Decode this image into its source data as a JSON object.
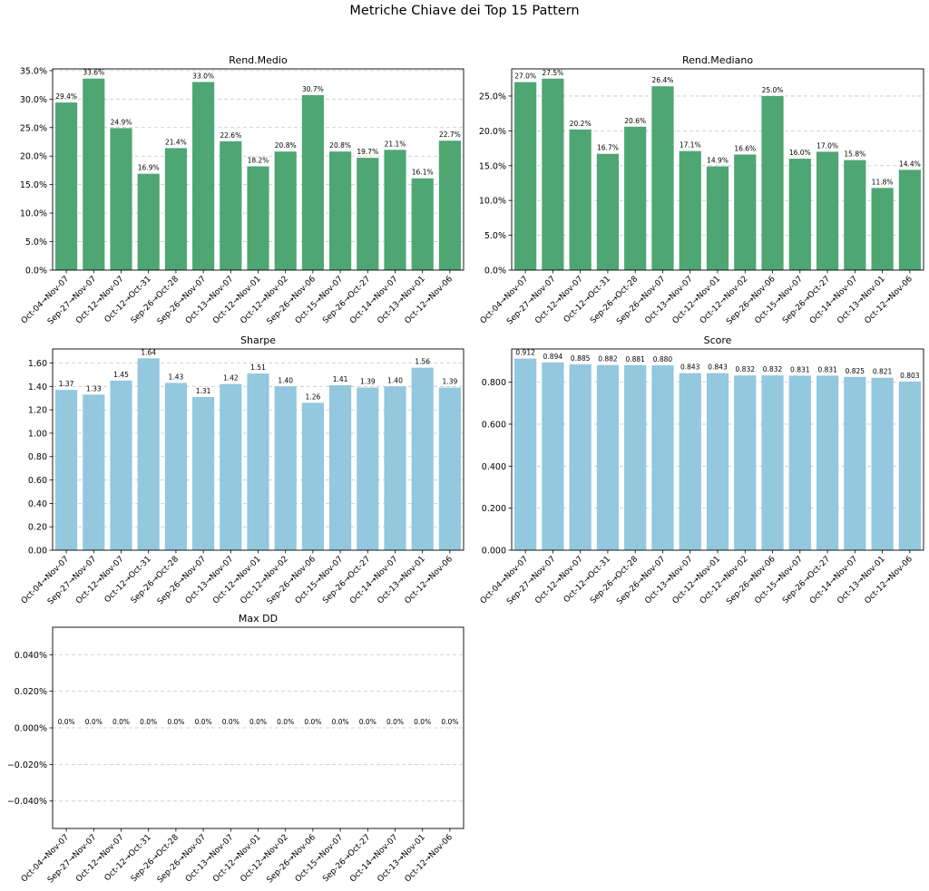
{
  "figure_title": "Metriche Chiave dei Top 15 Pattern",
  "colors": {
    "green": "#4ea673",
    "blue": "#93c8de"
  },
  "chart_data": [
    {
      "type": "bar",
      "title": "Rend.Medio",
      "categories": [
        "Oct-04→Nov-07",
        "Sep-27→Nov-07",
        "Oct-12→Nov-07",
        "Oct-12→Oct-31",
        "Sep-26→Oct-28",
        "Sep-26→Nov-07",
        "Oct-13→Nov-07",
        "Oct-12→Nov-01",
        "Oct-12→Nov-02",
        "Sep-26→Nov-06",
        "Oct-15→Nov-07",
        "Sep-26→Oct-27",
        "Oct-14→Nov-07",
        "Oct-13→Nov-01",
        "Oct-12→Nov-06"
      ],
      "values": [
        29.4,
        33.6,
        24.9,
        16.9,
        21.4,
        33.0,
        22.6,
        18.2,
        20.8,
        30.7,
        20.8,
        19.7,
        21.1,
        16.1,
        22.7
      ],
      "data_labels": [
        "29.4%",
        "33.6%",
        "24.9%",
        "16.9%",
        "21.4%",
        "33.0%",
        "22.6%",
        "18.2%",
        "20.8%",
        "30.7%",
        "20.8%",
        "19.7%",
        "21.1%",
        "16.1%",
        "22.7%"
      ],
      "yticks": [
        0,
        5,
        10,
        15,
        20,
        25,
        30,
        35
      ],
      "ytick_labels": [
        "0.0%",
        "5.0%",
        "10.0%",
        "15.0%",
        "20.0%",
        "25.0%",
        "30.0%",
        "35.0%"
      ],
      "ylim": [
        0,
        35.3
      ],
      "color": "green",
      "grid": "y-dashed"
    },
    {
      "type": "bar",
      "title": "Rend.Mediano",
      "categories": [
        "Oct-04→Nov-07",
        "Sep-27→Nov-07",
        "Oct-12→Nov-07",
        "Oct-12→Oct-31",
        "Sep-26→Oct-28",
        "Sep-26→Nov-07",
        "Oct-13→Nov-07",
        "Oct-12→Nov-01",
        "Oct-12→Nov-02",
        "Sep-26→Nov-06",
        "Oct-15→Nov-07",
        "Sep-26→Oct-27",
        "Oct-14→Nov-07",
        "Oct-13→Nov-01",
        "Oct-12→Nov-06"
      ],
      "values": [
        27.0,
        27.5,
        20.2,
        16.7,
        20.6,
        26.4,
        17.1,
        14.9,
        16.6,
        25.0,
        16.0,
        17.0,
        15.8,
        11.8,
        14.4
      ],
      "data_labels": [
        "27.0%",
        "27.5%",
        "20.2%",
        "16.7%",
        "20.6%",
        "26.4%",
        "17.1%",
        "14.9%",
        "16.6%",
        "25.0%",
        "16.0%",
        "17.0%",
        "15.8%",
        "11.8%",
        "14.4%"
      ],
      "yticks": [
        0,
        5,
        10,
        15,
        20,
        25
      ],
      "ytick_labels": [
        "0.0%",
        "5.0%",
        "10.0%",
        "15.0%",
        "20.0%",
        "25.0%"
      ],
      "ylim": [
        0,
        28.9
      ],
      "color": "green",
      "grid": "y-dashed"
    },
    {
      "type": "bar",
      "title": "Sharpe",
      "categories": [
        "Oct-04→Nov-07",
        "Sep-27→Nov-07",
        "Oct-12→Nov-07",
        "Oct-12→Oct-31",
        "Sep-26→Oct-28",
        "Sep-26→Nov-07",
        "Oct-13→Nov-07",
        "Oct-12→Nov-01",
        "Oct-12→Nov-02",
        "Sep-26→Nov-06",
        "Oct-15→Nov-07",
        "Sep-26→Oct-27",
        "Oct-14→Nov-07",
        "Oct-13→Nov-01",
        "Oct-12→Nov-06"
      ],
      "values": [
        1.37,
        1.33,
        1.45,
        1.64,
        1.43,
        1.31,
        1.42,
        1.51,
        1.4,
        1.26,
        1.41,
        1.39,
        1.4,
        1.56,
        1.39
      ],
      "data_labels": [
        "1.37",
        "1.33",
        "1.45",
        "1.64",
        "1.43",
        "1.31",
        "1.42",
        "1.51",
        "1.40",
        "1.26",
        "1.41",
        "1.39",
        "1.40",
        "1.56",
        "1.39"
      ],
      "yticks": [
        0,
        0.2,
        0.4,
        0.6,
        0.8,
        1.0,
        1.2,
        1.4,
        1.6
      ],
      "ytick_labels": [
        "0.00",
        "0.20",
        "0.40",
        "0.60",
        "0.80",
        "1.00",
        "1.20",
        "1.40",
        "1.60"
      ],
      "ylim": [
        0,
        1.72
      ],
      "color": "blue",
      "grid": "y-dashed"
    },
    {
      "type": "bar",
      "title": "Score",
      "categories": [
        "Oct-04→Nov-07",
        "Sep-27→Nov-07",
        "Oct-12→Nov-07",
        "Oct-12→Oct-31",
        "Sep-26→Oct-28",
        "Sep-26→Nov-07",
        "Oct-13→Nov-07",
        "Oct-12→Nov-01",
        "Oct-12→Nov-02",
        "Sep-26→Nov-06",
        "Oct-15→Nov-07",
        "Sep-26→Oct-27",
        "Oct-14→Nov-07",
        "Oct-13→Nov-01",
        "Oct-12→Nov-06"
      ],
      "values": [
        0.912,
        0.894,
        0.885,
        0.882,
        0.881,
        0.88,
        0.843,
        0.843,
        0.832,
        0.832,
        0.831,
        0.831,
        0.825,
        0.821,
        0.803
      ],
      "data_labels": [
        "0.912",
        "0.894",
        "0.885",
        "0.882",
        "0.881",
        "0.880",
        "0.843",
        "0.843",
        "0.832",
        "0.832",
        "0.831",
        "0.831",
        "0.825",
        "0.821",
        "0.803"
      ],
      "yticks": [
        0,
        0.2,
        0.4,
        0.6,
        0.8
      ],
      "ytick_labels": [
        "0.000",
        "0.200",
        "0.400",
        "0.600",
        "0.800"
      ],
      "ylim": [
        0,
        0.958
      ],
      "color": "blue",
      "grid": "y-dashed"
    },
    {
      "type": "bar",
      "title": "Max DD",
      "categories": [
        "Oct-04→Nov-07",
        "Sep-27→Nov-07",
        "Oct-12→Nov-07",
        "Oct-12→Oct-31",
        "Sep-26→Oct-28",
        "Sep-26→Nov-07",
        "Oct-13→Nov-07",
        "Oct-12→Nov-01",
        "Oct-12→Nov-02",
        "Sep-26→Nov-06",
        "Oct-15→Nov-07",
        "Sep-26→Oct-27",
        "Oct-14→Nov-07",
        "Oct-13→Nov-01",
        "Oct-12→Nov-06"
      ],
      "values": [
        0,
        0,
        0,
        0,
        0,
        0,
        0,
        0,
        0,
        0,
        0,
        0,
        0,
        0,
        0
      ],
      "data_labels": [
        "0.0%",
        "0.0%",
        "0.0%",
        "0.0%",
        "0.0%",
        "0.0%",
        "0.0%",
        "0.0%",
        "0.0%",
        "0.0%",
        "0.0%",
        "0.0%",
        "0.0%",
        "0.0%",
        "0.0%"
      ],
      "yticks": [
        -0.04,
        -0.02,
        0,
        0.02,
        0.04
      ],
      "ytick_labels": [
        "−0.040%",
        "−0.020%",
        "0.000%",
        "0.020%",
        "0.040%"
      ],
      "ylim": [
        -0.055,
        0.055
      ],
      "color": "red",
      "grid": "y-dashed"
    }
  ]
}
